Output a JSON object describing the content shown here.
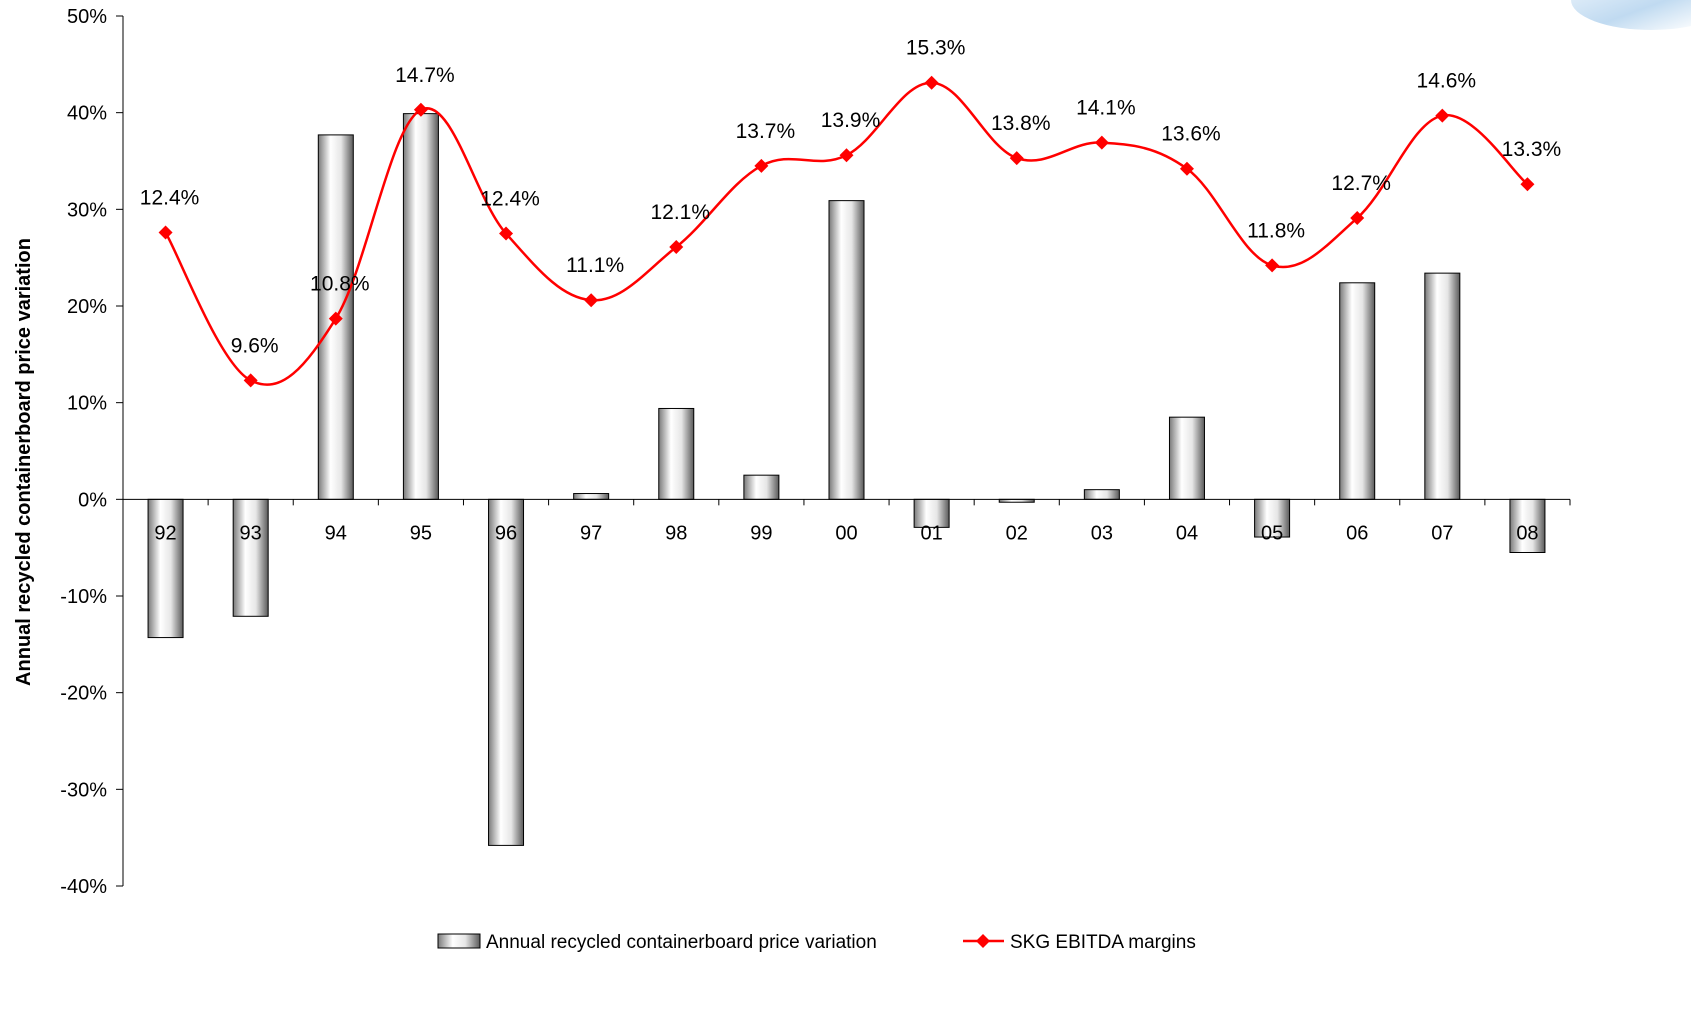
{
  "chart_data": {
    "type": "bar",
    "title": "",
    "xlabel": "",
    "ylabel": "Annual recycled containerboard price variation",
    "ylim": [
      -40,
      50
    ],
    "y_ticks": [
      "-40%",
      "-30%",
      "-20%",
      "-10%",
      "0%",
      "10%",
      "20%",
      "30%",
      "40%",
      "50%"
    ],
    "categories": [
      "92",
      "93",
      "94",
      "95",
      "96",
      "97",
      "98",
      "99",
      "00",
      "01",
      "02",
      "03",
      "04",
      "05",
      "06",
      "07",
      "08"
    ],
    "series": [
      {
        "name": "Annual recycled containerboard price variation",
        "kind": "bar",
        "values": [
          -14.3,
          -12.1,
          37.7,
          39.9,
          -35.8,
          0.6,
          9.4,
          2.5,
          30.9,
          -2.9,
          -0.3,
          1.0,
          8.5,
          -3.9,
          22.4,
          23.4,
          -5.5
        ]
      },
      {
        "name": "SKG EBITDA margins",
        "kind": "line",
        "color": "#ff0000",
        "values": [
          27.6,
          12.3,
          18.7,
          40.3,
          27.5,
          20.6,
          26.1,
          34.5,
          35.6,
          43.1,
          35.3,
          36.9,
          34.2,
          24.2,
          29.1,
          39.7,
          32.6
        ],
        "labels": [
          "12.4%",
          "9.6%",
          "10.8%",
          "14.7%",
          "12.4%",
          "11.1%",
          "12.1%",
          "13.7%",
          "13.9%",
          "15.3%",
          "13.8%",
          "14.1%",
          "13.6%",
          "11.8%",
          "12.7%",
          "14.6%",
          "13.3%"
        ]
      }
    ],
    "legend": {
      "placement": "bottom-center"
    },
    "grid": false
  }
}
